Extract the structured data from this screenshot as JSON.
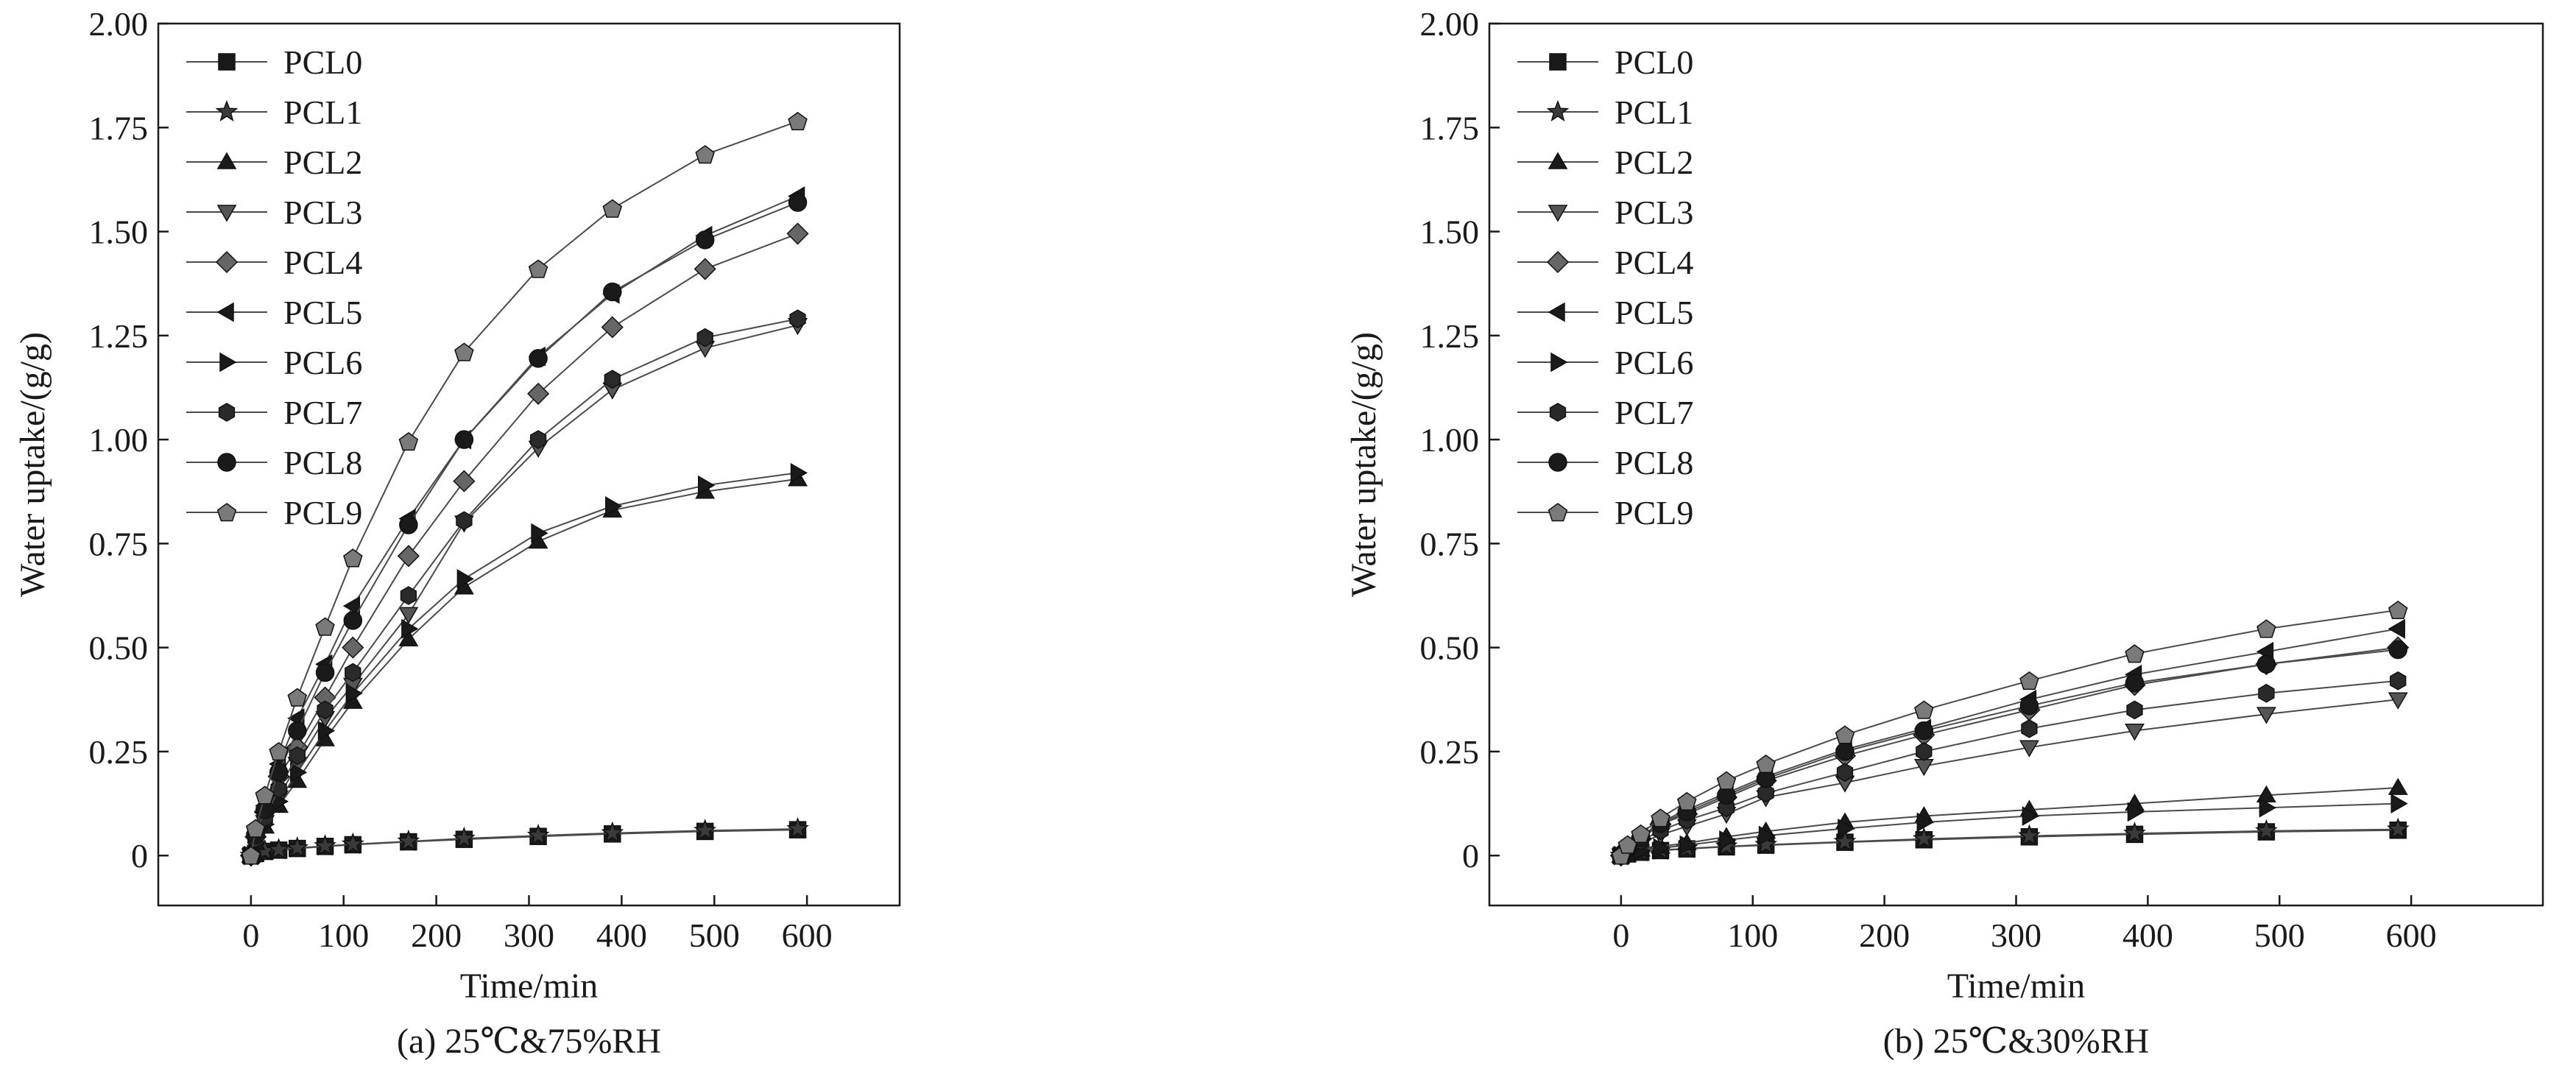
{
  "figure": {
    "panels_caption": [
      "(a) 25℃&75%RH",
      "(b) 25℃&30%RH"
    ]
  },
  "series_styles": [
    {
      "name": "PCL0",
      "marker": "square",
      "color": "#1a1a1a"
    },
    {
      "name": "PCL1",
      "marker": "star",
      "color": "#3a3a3a"
    },
    {
      "name": "PCL2",
      "marker": "triangle-up",
      "color": "#1a1a1a"
    },
    {
      "name": "PCL3",
      "marker": "triangle-down",
      "color": "#555555"
    },
    {
      "name": "PCL4",
      "marker": "diamond",
      "color": "#666666"
    },
    {
      "name": "PCL5",
      "marker": "triangle-left",
      "color": "#1a1a1a"
    },
    {
      "name": "PCL6",
      "marker": "triangle-right",
      "color": "#1a1a1a"
    },
    {
      "name": "PCL7",
      "marker": "hexagon",
      "color": "#2a2a2a"
    },
    {
      "name": "PCL8",
      "marker": "circle",
      "color": "#1a1a1a"
    },
    {
      "name": "PCL9",
      "marker": "pentagon",
      "color": "#7a7a7a"
    }
  ],
  "chart_data": [
    {
      "type": "line",
      "title": "(a) 25℃&75%RH",
      "xlabel": "Time/min",
      "ylabel": "Water uptake/(g/g)",
      "xlim": [
        -100,
        700
      ],
      "ylim": [
        -0.12,
        2.0
      ],
      "xticks": [
        0,
        100,
        200,
        300,
        400,
        500,
        600
      ],
      "xtick_labels": [
        "0",
        "100",
        "200",
        "300",
        "400",
        "500",
        "600"
      ],
      "yticks": [
        0,
        0.25,
        0.5,
        0.75,
        1.0,
        1.25,
        1.5,
        1.75,
        2.0
      ],
      "ytick_labels": [
        "0",
        "0.25",
        "0.50",
        "0.75",
        "1.00",
        "1.25",
        "1.50",
        "1.75",
        "2.00"
      ],
      "legend": "top-left",
      "x": [
        0,
        5,
        15,
        30,
        50,
        80,
        110,
        170,
        230,
        310,
        390,
        490,
        590
      ],
      "series": [
        {
          "name": "PCL0",
          "values": [
            0,
            0.005,
            0.01,
            0.013,
            0.017,
            0.022,
            0.026,
            0.033,
            0.039,
            0.046,
            0.052,
            0.058,
            0.062
          ]
        },
        {
          "name": "PCL1",
          "values": [
            0,
            0.006,
            0.011,
            0.014,
            0.018,
            0.023,
            0.027,
            0.034,
            0.041,
            0.048,
            0.054,
            0.06,
            0.064
          ]
        },
        {
          "name": "PCL2",
          "values": [
            0,
            0.03,
            0.07,
            0.12,
            0.18,
            0.28,
            0.37,
            0.52,
            0.645,
            0.755,
            0.83,
            0.875,
            0.905
          ]
        },
        {
          "name": "PCL3",
          "values": [
            0,
            0.035,
            0.08,
            0.14,
            0.22,
            0.33,
            0.41,
            0.58,
            0.8,
            0.98,
            1.12,
            1.22,
            1.275
          ]
        },
        {
          "name": "PCL4",
          "values": [
            0,
            0.045,
            0.105,
            0.19,
            0.26,
            0.38,
            0.5,
            0.72,
            0.9,
            1.11,
            1.27,
            1.41,
            1.495
          ]
        },
        {
          "name": "PCL5",
          "values": [
            0,
            0.055,
            0.12,
            0.22,
            0.33,
            0.46,
            0.6,
            0.81,
            1.0,
            1.2,
            1.35,
            1.49,
            1.585
          ]
        },
        {
          "name": "PCL6",
          "values": [
            0,
            0.032,
            0.075,
            0.13,
            0.2,
            0.3,
            0.39,
            0.545,
            0.665,
            0.775,
            0.84,
            0.89,
            0.92
          ]
        },
        {
          "name": "PCL7",
          "values": [
            0,
            0.04,
            0.09,
            0.16,
            0.24,
            0.35,
            0.44,
            0.625,
            0.805,
            1.0,
            1.145,
            1.245,
            1.29
          ]
        },
        {
          "name": "PCL8",
          "values": [
            0,
            0.05,
            0.11,
            0.2,
            0.3,
            0.44,
            0.565,
            0.795,
            1.0,
            1.195,
            1.355,
            1.48,
            1.57
          ]
        },
        {
          "name": "PCL9",
          "values": [
            0,
            0.065,
            0.145,
            0.25,
            0.38,
            0.55,
            0.715,
            0.995,
            1.21,
            1.41,
            1.555,
            1.685,
            1.765
          ]
        }
      ]
    },
    {
      "type": "line",
      "title": "(b) 25℃&30%RH",
      "xlabel": "Time/min",
      "ylabel": "Water uptake/(g/g)",
      "xlim": [
        -100,
        700
      ],
      "ylim": [
        -0.12,
        2.0
      ],
      "xticks": [
        0,
        100,
        200,
        300,
        400,
        500,
        600
      ],
      "xtick_labels": [
        "0",
        "100",
        "200",
        "300",
        "400",
        "500",
        "600"
      ],
      "yticks": [
        0,
        0.25,
        0.5,
        0.75,
        1.0,
        1.25,
        1.5,
        1.75,
        2.0
      ],
      "ytick_labels": [
        "0",
        "0.25",
        "0.50",
        "0.75",
        "1.00",
        "1.25",
        "1.50",
        "1.75",
        "2.00"
      ],
      "legend": "top-left",
      "x": [
        0,
        5,
        15,
        30,
        50,
        80,
        110,
        170,
        230,
        310,
        390,
        490,
        590
      ],
      "series": [
        {
          "name": "PCL0",
          "values": [
            0,
            0.004,
            0.008,
            0.012,
            0.016,
            0.021,
            0.025,
            0.032,
            0.038,
            0.045,
            0.051,
            0.057,
            0.061
          ]
        },
        {
          "name": "PCL1",
          "values": [
            0,
            0.005,
            0.009,
            0.013,
            0.017,
            0.022,
            0.026,
            0.033,
            0.04,
            0.047,
            0.053,
            0.059,
            0.063
          ]
        },
        {
          "name": "PCL2",
          "values": [
            0,
            0.008,
            0.015,
            0.022,
            0.03,
            0.045,
            0.058,
            0.08,
            0.095,
            0.11,
            0.125,
            0.145,
            0.163
          ]
        },
        {
          "name": "PCL3",
          "values": [
            0,
            0.015,
            0.03,
            0.05,
            0.07,
            0.1,
            0.14,
            0.175,
            0.215,
            0.26,
            0.3,
            0.34,
            0.375
          ]
        },
        {
          "name": "PCL4",
          "values": [
            0,
            0.02,
            0.04,
            0.075,
            0.1,
            0.14,
            0.18,
            0.24,
            0.29,
            0.35,
            0.41,
            0.46,
            0.5
          ]
        },
        {
          "name": "PCL5",
          "values": [
            0,
            0.022,
            0.045,
            0.08,
            0.11,
            0.15,
            0.19,
            0.255,
            0.305,
            0.375,
            0.435,
            0.49,
            0.545
          ]
        },
        {
          "name": "PCL6",
          "values": [
            0,
            0.006,
            0.012,
            0.018,
            0.025,
            0.037,
            0.048,
            0.065,
            0.08,
            0.095,
            0.105,
            0.115,
            0.125
          ]
        },
        {
          "name": "PCL7",
          "values": [
            0,
            0.017,
            0.035,
            0.06,
            0.085,
            0.115,
            0.15,
            0.2,
            0.25,
            0.305,
            0.35,
            0.39,
            0.42
          ]
        },
        {
          "name": "PCL8",
          "values": [
            0,
            0.021,
            0.043,
            0.077,
            0.105,
            0.145,
            0.185,
            0.25,
            0.3,
            0.36,
            0.415,
            0.46,
            0.495
          ]
        },
        {
          "name": "PCL9",
          "values": [
            0,
            0.026,
            0.052,
            0.09,
            0.13,
            0.18,
            0.22,
            0.29,
            0.35,
            0.42,
            0.485,
            0.545,
            0.59
          ]
        }
      ]
    }
  ]
}
